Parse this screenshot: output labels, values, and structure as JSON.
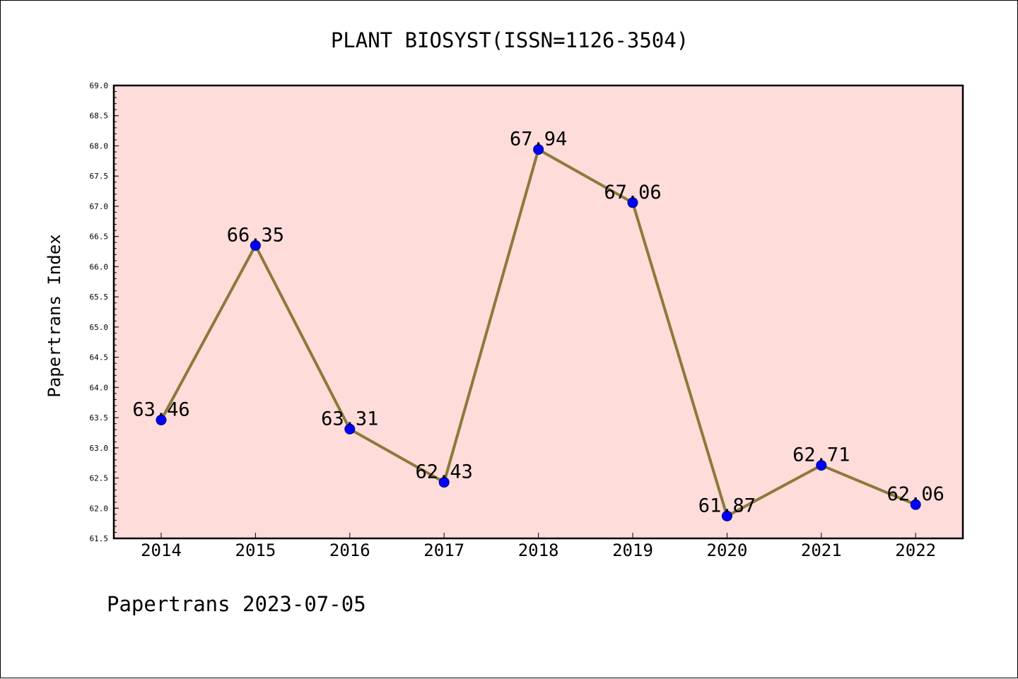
{
  "chart_data": {
    "type": "line",
    "title": "PLANT BIOSYST(ISSN=1126-3504)",
    "xlabel": "",
    "ylabel": "Papertrans Index",
    "categories": [
      "2014",
      "2015",
      "2016",
      "2017",
      "2018",
      "2019",
      "2020",
      "2021",
      "2022"
    ],
    "series": [
      {
        "values": [
          63.46,
          66.35,
          63.31,
          62.43,
          67.94,
          67.06,
          61.87,
          62.71,
          62.06
        ],
        "data_labels": [
          "63.46",
          "66.35",
          "63.31",
          "62.43",
          "67.94",
          "67.06",
          "61.87",
          "62.71",
          "62.06"
        ]
      }
    ],
    "ylim": [
      61.5,
      69.0
    ],
    "yticks": [
      "61.5",
      "62.0",
      "62.5",
      "63.0",
      "63.5",
      "64.0",
      "64.5",
      "65.0",
      "65.5",
      "66.0",
      "66.5",
      "67.0",
      "67.5",
      "68.0",
      "68.5",
      "69.0"
    ],
    "grid": false,
    "legend": "none",
    "colors": {
      "plot_background": "#FDDCDA",
      "line": "#8B7A3A",
      "marker_fill": "#0000FF",
      "marker_edge": "#00007A",
      "axes": "#000000"
    }
  },
  "footer": "Papertrans 2023-07-05"
}
